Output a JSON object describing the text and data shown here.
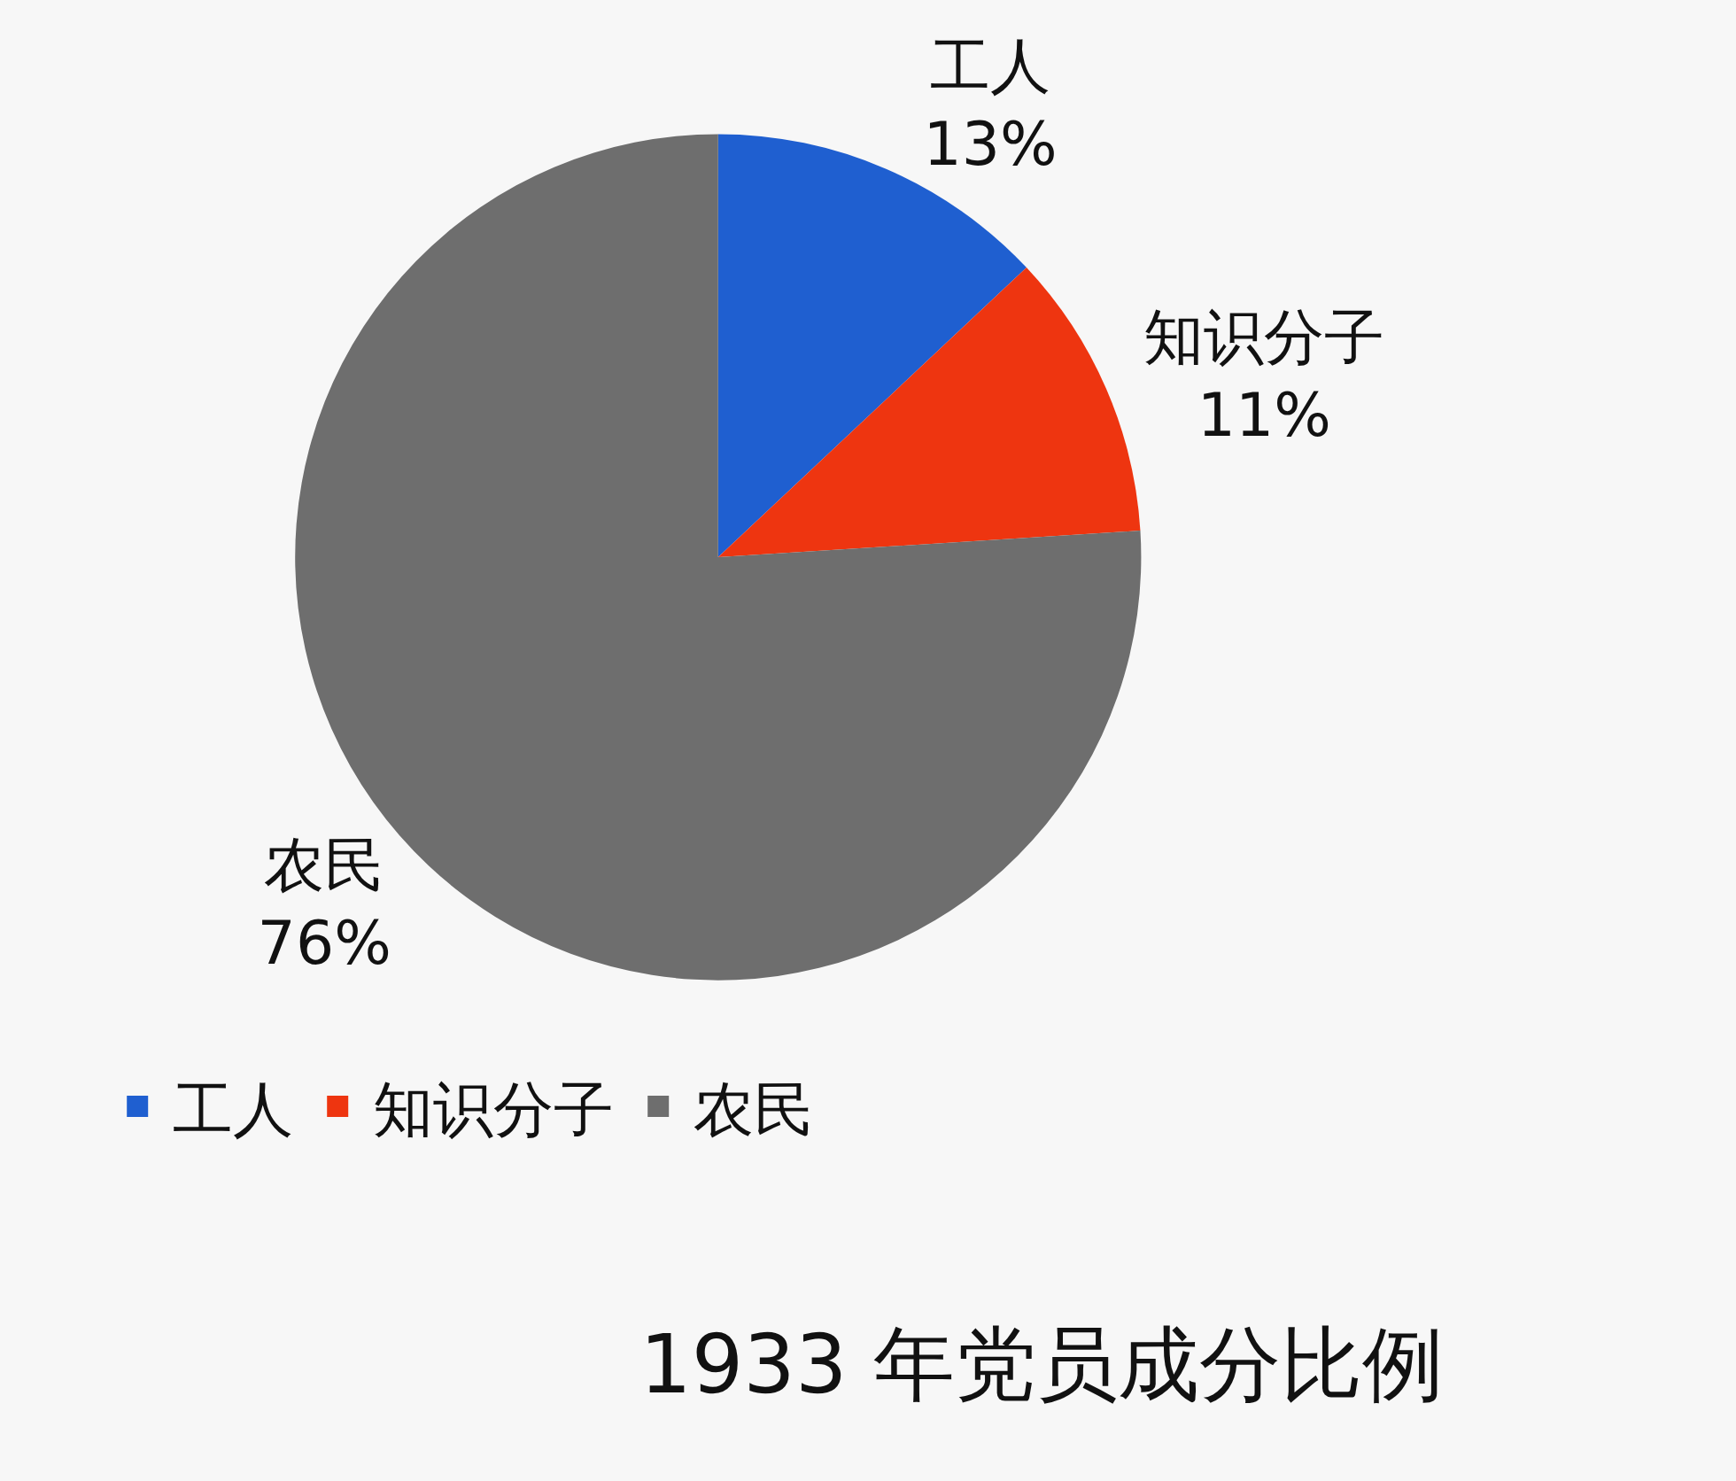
{
  "chart_data": {
    "type": "pie",
    "title": "1933 年党员成分比例",
    "categories": [
      "工人",
      "知识分子",
      "农民"
    ],
    "values": [
      13,
      11,
      76
    ],
    "value_labels": [
      "13%",
      "11%",
      "76%"
    ],
    "colors": [
      "#1f5fd0",
      "#ee3510",
      "#6e6e6e"
    ],
    "legend": "bottom"
  }
}
